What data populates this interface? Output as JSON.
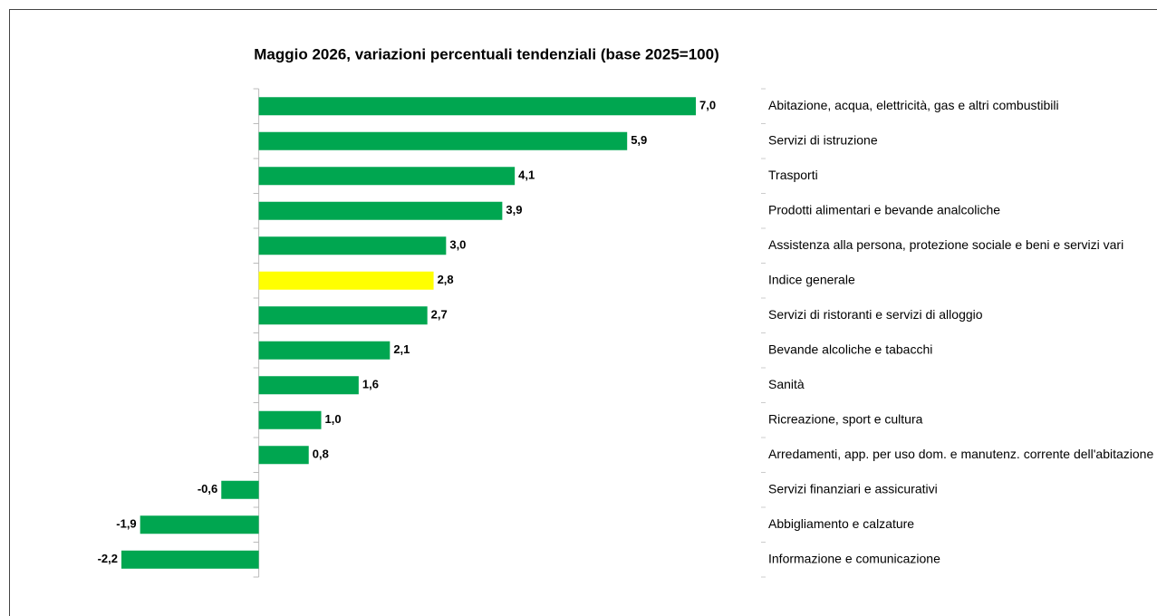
{
  "chart_data": {
    "type": "hbar",
    "title": "Maggio 2026, variazioni percentuali tendenziali (base 2025=100)",
    "categories": [
      "Abitazione, acqua, elettricità, gas e altri combustibili",
      "Servizi di istruzione",
      "Trasporti",
      "Prodotti alimentari e bevande analcoliche",
      "Assistenza alla persona, protezione sociale e beni e servizi vari",
      "Indice generale",
      "Servizi di ristoranti e servizi di alloggio",
      "Bevande alcoliche e tabacchi",
      "Sanità",
      "Ricreazione, sport e cultura",
      "Arredamenti, app. per uso dom. e manutenz. corrente dell'abitazione",
      "Servizi finanziari e assicurativi",
      "Abbigliamento e calzature",
      "Informazione e comunicazione"
    ],
    "values": [
      7.0,
      5.9,
      4.1,
      3.9,
      3.0,
      2.8,
      2.7,
      2.1,
      1.6,
      1.0,
      0.8,
      -0.6,
      -1.9,
      -2.2
    ],
    "value_labels": [
      "7,0",
      "5,9",
      "4,1",
      "3,9",
      "3,0",
      "2,8",
      "2,7",
      "2,1",
      "1,6",
      "1,0",
      "0,8",
      "-0,6",
      "-1,9",
      "-2,2"
    ],
    "colors": [
      "#00a650",
      "#00a650",
      "#00a650",
      "#00a650",
      "#00a650",
      "#ffff00",
      "#00a650",
      "#00a650",
      "#00a650",
      "#00a650",
      "#00a650",
      "#00a650",
      "#00a650",
      "#00a650"
    ]
  }
}
